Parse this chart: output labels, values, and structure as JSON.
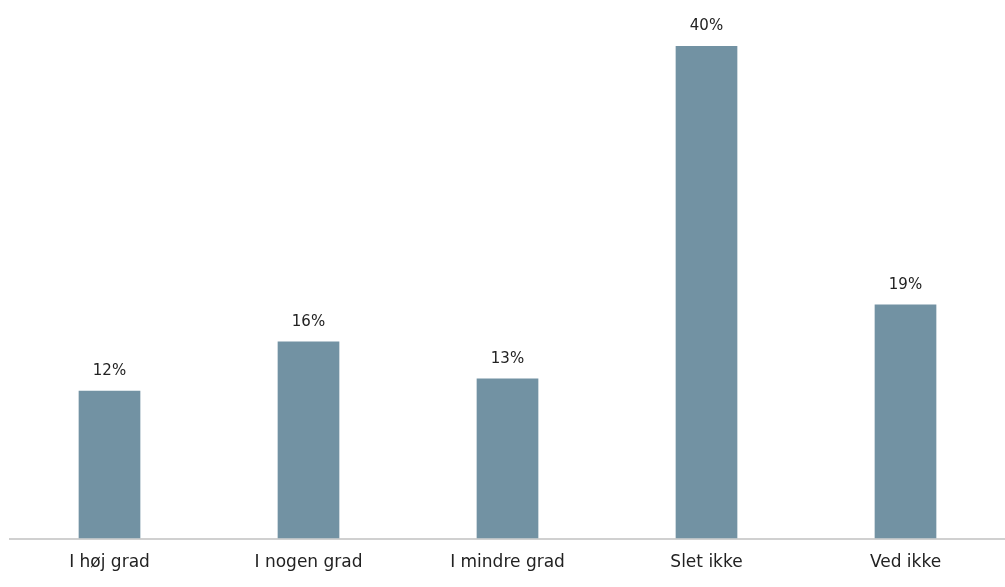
{
  "chart_data": {
    "type": "bar",
    "categories": [
      "I høj grad",
      "I nogen grad",
      "I mindre grad",
      "Slet ikke",
      "Ved ikke"
    ],
    "values": [
      12,
      16,
      13,
      40,
      19
    ],
    "value_labels": [
      "12%",
      "16%",
      "13%",
      "40%",
      "19%"
    ],
    "color": "#7292a3",
    "grid": false,
    "tick_labels": "x",
    "legend": false
  }
}
